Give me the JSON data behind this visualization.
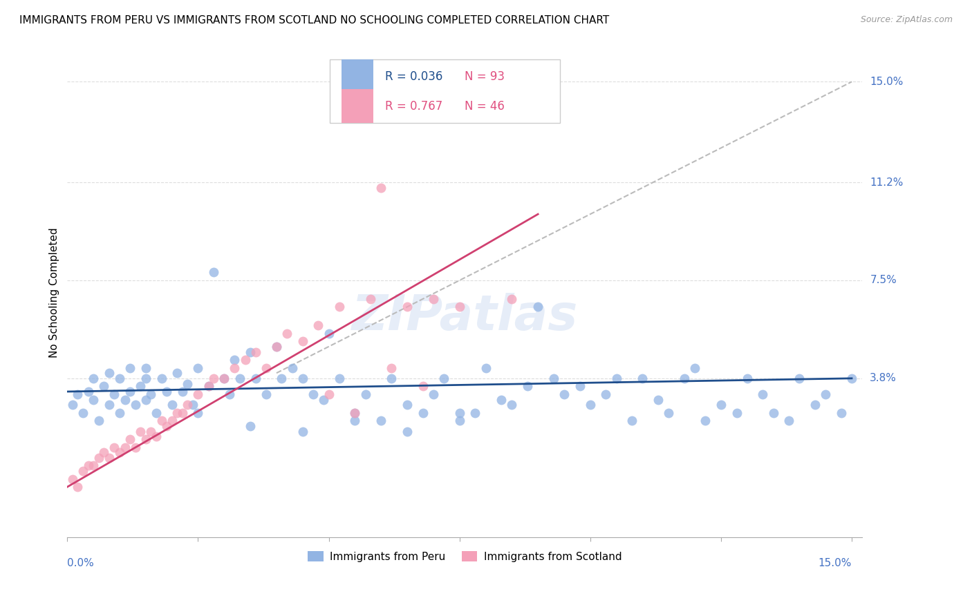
{
  "title": "IMMIGRANTS FROM PERU VS IMMIGRANTS FROM SCOTLAND NO SCHOOLING COMPLETED CORRELATION CHART",
  "source": "Source: ZipAtlas.com",
  "ylabel": "No Schooling Completed",
  "legend_peru_R": "0.036",
  "legend_peru_N": "93",
  "legend_scotland_R": "0.767",
  "legend_scotland_N": "46",
  "peru_color": "#92B4E3",
  "scotland_color": "#F4A0B8",
  "peru_line_color": "#1F4E8C",
  "scotland_line_color": "#D04070",
  "dash_color": "#BBBBBB",
  "watermark": "ZIPatlas",
  "grid_color": "#DDDDDD",
  "ytick_color": "#4472C4",
  "peru_trendline_x": [
    0.0,
    0.15
  ],
  "peru_trendline_y": [
    0.033,
    0.038
  ],
  "scotland_trendline_x": [
    0.0,
    0.09
  ],
  "scotland_trendline_y": [
    -0.003,
    0.1
  ],
  "dash_trendline_x": [
    0.04,
    0.15
  ],
  "dash_trendline_y": [
    0.04,
    0.15
  ],
  "xlim": [
    0.0,
    0.152
  ],
  "ylim": [
    -0.022,
    0.163
  ],
  "peru_x": [
    0.001,
    0.002,
    0.003,
    0.004,
    0.005,
    0.005,
    0.006,
    0.007,
    0.008,
    0.008,
    0.009,
    0.01,
    0.01,
    0.011,
    0.012,
    0.012,
    0.013,
    0.014,
    0.015,
    0.015,
    0.016,
    0.017,
    0.018,
    0.019,
    0.02,
    0.021,
    0.022,
    0.023,
    0.024,
    0.025,
    0.027,
    0.028,
    0.03,
    0.031,
    0.032,
    0.033,
    0.035,
    0.036,
    0.038,
    0.04,
    0.041,
    0.043,
    0.045,
    0.047,
    0.049,
    0.05,
    0.052,
    0.055,
    0.057,
    0.06,
    0.062,
    0.065,
    0.068,
    0.07,
    0.072,
    0.075,
    0.078,
    0.08,
    0.083,
    0.085,
    0.088,
    0.09,
    0.093,
    0.095,
    0.098,
    0.1,
    0.103,
    0.105,
    0.108,
    0.11,
    0.113,
    0.115,
    0.118,
    0.12,
    0.122,
    0.125,
    0.128,
    0.13,
    0.133,
    0.135,
    0.138,
    0.14,
    0.143,
    0.145,
    0.148,
    0.15,
    0.015,
    0.025,
    0.035,
    0.045,
    0.055,
    0.065,
    0.075
  ],
  "peru_y": [
    0.028,
    0.032,
    0.025,
    0.033,
    0.03,
    0.038,
    0.022,
    0.035,
    0.028,
    0.04,
    0.032,
    0.025,
    0.038,
    0.03,
    0.033,
    0.042,
    0.028,
    0.035,
    0.03,
    0.038,
    0.032,
    0.025,
    0.038,
    0.033,
    0.028,
    0.04,
    0.033,
    0.036,
    0.028,
    0.042,
    0.035,
    0.078,
    0.038,
    0.032,
    0.045,
    0.038,
    0.048,
    0.038,
    0.032,
    0.05,
    0.038,
    0.042,
    0.038,
    0.032,
    0.03,
    0.055,
    0.038,
    0.025,
    0.032,
    0.022,
    0.038,
    0.028,
    0.025,
    0.032,
    0.038,
    0.022,
    0.025,
    0.042,
    0.03,
    0.028,
    0.035,
    0.065,
    0.038,
    0.032,
    0.035,
    0.028,
    0.032,
    0.038,
    0.022,
    0.038,
    0.03,
    0.025,
    0.038,
    0.042,
    0.022,
    0.028,
    0.025,
    0.038,
    0.032,
    0.025,
    0.022,
    0.038,
    0.028,
    0.032,
    0.025,
    0.038,
    0.042,
    0.025,
    0.02,
    0.018,
    0.022,
    0.018,
    0.025
  ],
  "scotland_x": [
    0.001,
    0.002,
    0.003,
    0.004,
    0.005,
    0.006,
    0.007,
    0.008,
    0.009,
    0.01,
    0.011,
    0.012,
    0.013,
    0.014,
    0.015,
    0.016,
    0.017,
    0.018,
    0.019,
    0.02,
    0.021,
    0.022,
    0.023,
    0.025,
    0.027,
    0.028,
    0.03,
    0.032,
    0.034,
    0.036,
    0.038,
    0.04,
    0.042,
    0.045,
    0.048,
    0.05,
    0.052,
    0.055,
    0.058,
    0.06,
    0.062,
    0.065,
    0.068,
    0.07,
    0.075,
    0.085
  ],
  "scotland_y": [
    0.0,
    -0.003,
    0.003,
    0.005,
    0.005,
    0.008,
    0.01,
    0.008,
    0.012,
    0.01,
    0.012,
    0.015,
    0.012,
    0.018,
    0.015,
    0.018,
    0.016,
    0.022,
    0.02,
    0.022,
    0.025,
    0.025,
    0.028,
    0.032,
    0.035,
    0.038,
    0.038,
    0.042,
    0.045,
    0.048,
    0.042,
    0.05,
    0.055,
    0.052,
    0.058,
    0.032,
    0.065,
    0.025,
    0.068,
    0.11,
    0.042,
    0.065,
    0.035,
    0.068,
    0.065,
    0.068
  ]
}
